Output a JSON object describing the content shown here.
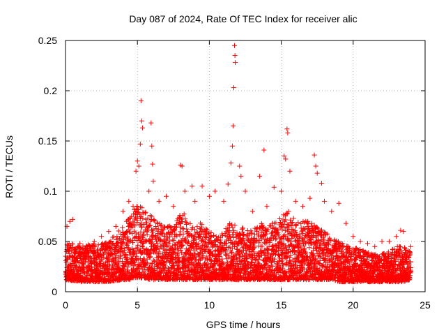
{
  "chart_data": {
    "type": "scatter",
    "title": "Day 087 of 2024, Rate Of TEC Index for receiver alic",
    "xlabel": "GPS time / hours",
    "ylabel": "ROTI / TECUs",
    "xlim": [
      0,
      25
    ],
    "ylim": [
      0,
      0.25
    ],
    "xticks": [
      "0",
      "5",
      "10",
      "15",
      "20",
      "25"
    ],
    "yticks": [
      "0",
      "0.05",
      "0.1",
      "0.15",
      "0.2",
      "0.25"
    ],
    "grid": true,
    "legend": "none",
    "marker": "plus",
    "color": "#ff0000",
    "series": [
      {
        "points": [
          [
            0.1,
            0.065
          ],
          [
            0.3,
            0.07
          ],
          [
            0.5,
            0.072
          ],
          [
            1.0,
            0.048
          ],
          [
            1.5,
            0.045
          ],
          [
            2.0,
            0.05
          ],
          [
            2.5,
            0.055
          ],
          [
            3.0,
            0.06
          ],
          [
            3.5,
            0.065
          ],
          [
            4.0,
            0.08
          ],
          [
            4.4,
            0.09
          ],
          [
            4.7,
            0.085
          ],
          [
            4.9,
            0.12
          ],
          [
            5.0,
            0.13
          ],
          [
            5.1,
            0.125
          ],
          [
            5.2,
            0.147
          ],
          [
            5.25,
            0.19
          ],
          [
            5.3,
            0.17
          ],
          [
            5.35,
            0.163
          ],
          [
            5.8,
            0.1
          ],
          [
            5.95,
            0.168
          ],
          [
            6.0,
            0.145
          ],
          [
            6.05,
            0.127
          ],
          [
            6.1,
            0.11
          ],
          [
            6.5,
            0.09
          ],
          [
            7.0,
            0.095
          ],
          [
            7.5,
            0.085
          ],
          [
            8.0,
            0.126
          ],
          [
            8.1,
            0.125
          ],
          [
            8.3,
            0.1
          ],
          [
            8.8,
            0.105
          ],
          [
            9.0,
            0.09
          ],
          [
            9.5,
            0.105
          ],
          [
            10.0,
            0.095
          ],
          [
            10.4,
            0.1
          ],
          [
            11.0,
            0.09
          ],
          [
            11.3,
            0.107
          ],
          [
            11.5,
            0.128
          ],
          [
            11.6,
            0.145
          ],
          [
            11.65,
            0.165
          ],
          [
            11.7,
            0.203
          ],
          [
            11.75,
            0.245
          ],
          [
            11.78,
            0.235
          ],
          [
            11.8,
            0.228
          ],
          [
            12.1,
            0.125
          ],
          [
            12.2,
            0.115
          ],
          [
            12.5,
            0.1
          ],
          [
            13.0,
            0.08
          ],
          [
            13.5,
            0.115
          ],
          [
            13.8,
            0.141
          ],
          [
            14.0,
            0.085
          ],
          [
            14.5,
            0.104
          ],
          [
            15.0,
            0.1
          ],
          [
            15.2,
            0.135
          ],
          [
            15.3,
            0.132
          ],
          [
            15.4,
            0.162
          ],
          [
            15.45,
            0.158
          ],
          [
            15.6,
            0.12
          ],
          [
            16.0,
            0.09
          ],
          [
            16.5,
            0.085
          ],
          [
            17.0,
            0.093
          ],
          [
            17.3,
            0.136
          ],
          [
            17.4,
            0.125
          ],
          [
            17.5,
            0.118
          ],
          [
            17.8,
            0.108
          ],
          [
            18.0,
            0.09
          ],
          [
            18.5,
            0.08
          ],
          [
            19.0,
            0.088
          ],
          [
            19.5,
            0.068
          ],
          [
            20.0,
            0.055
          ],
          [
            20.5,
            0.05
          ],
          [
            21.0,
            0.048
          ],
          [
            21.5,
            0.045
          ],
          [
            22.0,
            0.05
          ],
          [
            22.5,
            0.05
          ],
          [
            23.0,
            0.055
          ],
          [
            23.3,
            0.061
          ],
          [
            23.5,
            0.06
          ],
          [
            24.0,
            0.045
          ]
        ],
        "envelope": {
          "description": "dense band of points every ~0.02 h",
          "x": [
            0,
            1,
            2,
            3,
            4,
            4.5,
            5,
            5.5,
            6,
            6.5,
            7,
            7.5,
            8,
            8.5,
            9,
            9.5,
            10,
            10.5,
            11,
            11.5,
            12,
            12.5,
            13,
            13.5,
            14,
            14.5,
            15,
            15.5,
            16,
            16.5,
            17,
            17.5,
            18,
            18.5,
            19,
            19.5,
            20,
            20.5,
            21,
            21.5,
            22,
            22.5,
            23,
            23.5,
            24
          ],
          "low": [
            0.012,
            0.01,
            0.01,
            0.01,
            0.012,
            0.012,
            0.014,
            0.013,
            0.012,
            0.012,
            0.012,
            0.012,
            0.012,
            0.012,
            0.012,
            0.012,
            0.012,
            0.012,
            0.012,
            0.012,
            0.012,
            0.012,
            0.012,
            0.012,
            0.012,
            0.012,
            0.012,
            0.012,
            0.012,
            0.012,
            0.012,
            0.012,
            0.012,
            0.012,
            0.01,
            0.01,
            0.01,
            0.01,
            0.01,
            0.01,
            0.01,
            0.01,
            0.01,
            0.01,
            0.012
          ],
          "high": [
            0.05,
            0.045,
            0.048,
            0.05,
            0.065,
            0.075,
            0.09,
            0.08,
            0.075,
            0.068,
            0.07,
            0.065,
            0.08,
            0.075,
            0.065,
            0.07,
            0.06,
            0.055,
            0.06,
            0.07,
            0.065,
            0.065,
            0.06,
            0.07,
            0.065,
            0.07,
            0.075,
            0.08,
            0.07,
            0.07,
            0.07,
            0.065,
            0.06,
            0.055,
            0.05,
            0.048,
            0.045,
            0.042,
            0.04,
            0.038,
            0.038,
            0.04,
            0.045,
            0.045,
            0.04
          ]
        }
      }
    ]
  }
}
